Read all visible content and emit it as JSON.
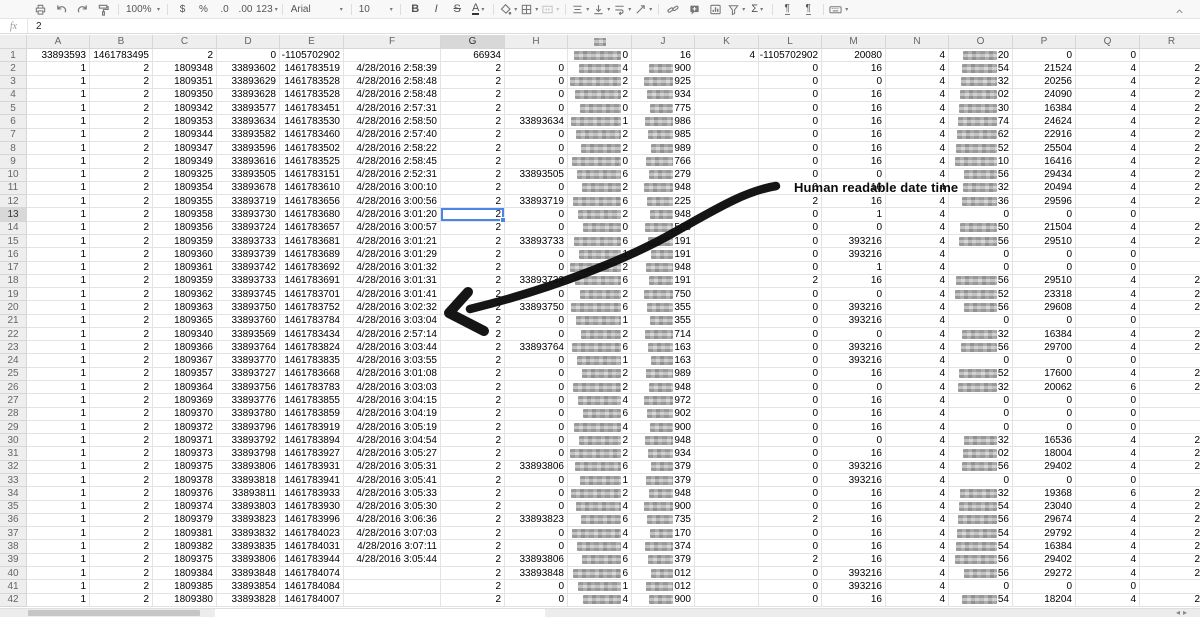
{
  "toolbar": {
    "zoom": "100%",
    "caret": "▾",
    "currency": "$",
    "percent": "%",
    "dec_dec": ".0",
    "inc_dec": ".00",
    "more_formats": "123",
    "font": "Arial",
    "size": "10",
    "bold": "B",
    "italic": "I",
    "strike": "S",
    "color": "A",
    "sum": "Σ",
    "pilcrow": "¶"
  },
  "formula_bar": {
    "fx_label": "fx",
    "value": "2"
  },
  "annotation": {
    "text": "Human readable date time"
  },
  "colors": {
    "selection": "#4a86e8",
    "arrow": "#0b0b0b",
    "redaction": "#b5b5b5"
  },
  "scrollbar": {
    "left_arrow": "◂",
    "right_arrow": "▸"
  },
  "sheet": {
    "selected_cell": {
      "col": "G",
      "row": 13,
      "value": "2"
    },
    "column_headers": [
      "A",
      "B",
      "C",
      "D",
      "E",
      "F",
      "G",
      "H",
      "~",
      "J",
      "K",
      "L",
      "M",
      "N",
      "O",
      "P",
      "Q",
      "R"
    ],
    "rows": [
      [
        "33893593",
        "1461783495",
        "2",
        "0",
        "-1105702902",
        "",
        "66934",
        "",
        "~0",
        "16",
        "4",
        "-1105702902",
        "20080",
        "4",
        "~20",
        "0",
        "0",
        ""
      ],
      [
        "1",
        "2",
        "1809348",
        "33893602",
        "1461783519",
        "4/28/2016 2:58:39",
        "2",
        "0",
        "~4",
        "~900",
        "",
        "0",
        "16",
        "4",
        "~54",
        "21524",
        "4",
        "2"
      ],
      [
        "1",
        "2",
        "1809351",
        "33893629",
        "1461783528",
        "4/28/2016 2:58:48",
        "2",
        "0",
        "~2",
        "~925",
        "",
        "0",
        "0",
        "4",
        "~32",
        "20256",
        "4",
        "2"
      ],
      [
        "1",
        "2",
        "1809350",
        "33893628",
        "1461783528",
        "4/28/2016 2:58:48",
        "2",
        "0",
        "~2",
        "~934",
        "",
        "0",
        "16",
        "4",
        "~02",
        "24090",
        "4",
        "2"
      ],
      [
        "1",
        "2",
        "1809342",
        "33893577",
        "1461783451",
        "4/28/2016 2:57:31",
        "2",
        "0",
        "~0",
        "~775",
        "",
        "0",
        "16",
        "4",
        "~30",
        "16384",
        "4",
        "2"
      ],
      [
        "1",
        "2",
        "1809353",
        "33893634",
        "1461783530",
        "4/28/2016 2:58:50",
        "2",
        "33893634",
        "~1",
        "~986",
        "",
        "0",
        "16",
        "4",
        "~74",
        "24624",
        "4",
        "2"
      ],
      [
        "1",
        "2",
        "1809344",
        "33893582",
        "1461783460",
        "4/28/2016 2:57:40",
        "2",
        "0",
        "~2",
        "~985",
        "",
        "0",
        "16",
        "4",
        "~62",
        "22916",
        "4",
        "2"
      ],
      [
        "1",
        "2",
        "1809347",
        "33893596",
        "1461783502",
        "4/28/2016 2:58:22",
        "2",
        "0",
        "~2",
        "~989",
        "",
        "0",
        "16",
        "4",
        "~52",
        "25504",
        "4",
        "2"
      ],
      [
        "1",
        "2",
        "1809349",
        "33893616",
        "1461783525",
        "4/28/2016 2:58:45",
        "2",
        "0",
        "~0",
        "~766",
        "",
        "0",
        "16",
        "4",
        "~10",
        "16416",
        "4",
        "2"
      ],
      [
        "1",
        "2",
        "1809325",
        "33893505",
        "1461783151",
        "4/28/2016 2:52:31",
        "2",
        "33893505",
        "~6",
        "~279",
        "",
        "0",
        "0",
        "4",
        "~56",
        "29434",
        "4",
        "2"
      ],
      [
        "1",
        "2",
        "1809354",
        "33893678",
        "1461783610",
        "4/28/2016 3:00:10",
        "2",
        "0",
        "~2",
        "~948",
        "",
        "0",
        "16",
        "4",
        "~32",
        "20494",
        "4",
        "2"
      ],
      [
        "1",
        "2",
        "1809355",
        "33893719",
        "1461783656",
        "4/28/2016 3:00:56",
        "2",
        "33893719",
        "~6",
        "~225",
        "",
        "2",
        "16",
        "4",
        "~36",
        "29596",
        "4",
        "2"
      ],
      [
        "1",
        "2",
        "1809358",
        "33893730",
        "1461783680",
        "4/28/2016 3:01:20",
        "2",
        "0",
        "~2",
        "~948",
        "",
        "0",
        "1",
        "4",
        "0",
        "0",
        "0",
        ""
      ],
      [
        "1",
        "2",
        "1809356",
        "33893724",
        "1461783657",
        "4/28/2016 3:00:57",
        "2",
        "0",
        "~0",
        "~508",
        "",
        "0",
        "0",
        "4",
        "~50",
        "21504",
        "4",
        "2"
      ],
      [
        "1",
        "2",
        "1809359",
        "33893733",
        "1461783681",
        "4/28/2016 3:01:21",
        "2",
        "33893733",
        "~6",
        "~191",
        "",
        "0",
        "393216",
        "4",
        "~56",
        "29510",
        "4",
        "2"
      ],
      [
        "1",
        "2",
        "1809360",
        "33893739",
        "1461783689",
        "4/28/2016 3:01:29",
        "2",
        "0",
        "~1",
        "~191",
        "",
        "0",
        "393216",
        "4",
        "0",
        "0",
        "0",
        ""
      ],
      [
        "1",
        "2",
        "1809361",
        "33893742",
        "1461783692",
        "4/28/2016 3:01:32",
        "2",
        "0",
        "~2",
        "~948",
        "",
        "0",
        "1",
        "4",
        "0",
        "0",
        "0",
        ""
      ],
      [
        "1",
        "2",
        "1809359",
        "33893733",
        "1461783691",
        "4/28/2016 3:01:31",
        "2",
        "33893733",
        "~6",
        "~191",
        "",
        "2",
        "16",
        "4",
        "~56",
        "29510",
        "4",
        "2"
      ],
      [
        "1",
        "2",
        "1809362",
        "33893745",
        "1461783701",
        "4/28/2016 3:01:41",
        "2",
        "0",
        "~2",
        "~750",
        "",
        "0",
        "0",
        "4",
        "~52",
        "23318",
        "4",
        "2"
      ],
      [
        "1",
        "2",
        "1809363",
        "33893750",
        "1461783752",
        "4/28/2016 3:02:32",
        "2",
        "33893750",
        "~6",
        "~355",
        "",
        "0",
        "393216",
        "4",
        "~56",
        "29608",
        "4",
        "2"
      ],
      [
        "1",
        "2",
        "1809365",
        "33893760",
        "1461783784",
        "4/28/2016 3:03:04",
        "2",
        "0",
        "~1",
        "~355",
        "",
        "0",
        "393216",
        "4",
        "0",
        "0",
        "0",
        ""
      ],
      [
        "1",
        "2",
        "1809340",
        "33893569",
        "1461783434",
        "4/28/2016 2:57:14",
        "2",
        "0",
        "~2",
        "~714",
        "",
        "0",
        "0",
        "4",
        "~32",
        "16384",
        "4",
        "2"
      ],
      [
        "1",
        "2",
        "1809366",
        "33893764",
        "1461783824",
        "4/28/2016 3:03:44",
        "2",
        "33893764",
        "~6",
        "~163",
        "",
        "0",
        "393216",
        "4",
        "~56",
        "29700",
        "4",
        "2"
      ],
      [
        "1",
        "2",
        "1809367",
        "33893770",
        "1461783835",
        "4/28/2016 3:03:55",
        "2",
        "0",
        "~1",
        "~163",
        "",
        "0",
        "393216",
        "4",
        "0",
        "0",
        "0",
        ""
      ],
      [
        "1",
        "2",
        "1809357",
        "33893727",
        "1461783668",
        "4/28/2016 3:01:08",
        "2",
        "0",
        "~2",
        "~989",
        "",
        "0",
        "16",
        "4",
        "~52",
        "17600",
        "4",
        "2"
      ],
      [
        "1",
        "2",
        "1809364",
        "33893756",
        "1461783783",
        "4/28/2016 3:03:03",
        "2",
        "0",
        "~2",
        "~948",
        "",
        "0",
        "0",
        "4",
        "~32",
        "20062",
        "6",
        "2"
      ],
      [
        "1",
        "2",
        "1809369",
        "33893776",
        "1461783855",
        "4/28/2016 3:04:15",
        "2",
        "0",
        "~4",
        "~972",
        "",
        "0",
        "16",
        "4",
        "0",
        "0",
        "0",
        ""
      ],
      [
        "1",
        "2",
        "1809370",
        "33893780",
        "1461783859",
        "4/28/2016 3:04:19",
        "2",
        "0",
        "~6",
        "~902",
        "",
        "0",
        "16",
        "4",
        "0",
        "0",
        "0",
        ""
      ],
      [
        "1",
        "2",
        "1809372",
        "33893796",
        "1461783919",
        "4/28/2016 3:05:19",
        "2",
        "0",
        "~4",
        "~900",
        "",
        "0",
        "16",
        "4",
        "0",
        "0",
        "0",
        ""
      ],
      [
        "1",
        "2",
        "1809371",
        "33893792",
        "1461783894",
        "4/28/2016 3:04:54",
        "2",
        "0",
        "~2",
        "~948",
        "",
        "0",
        "0",
        "4",
        "~32",
        "16536",
        "4",
        "2"
      ],
      [
        "1",
        "2",
        "1809373",
        "33893798",
        "1461783927",
        "4/28/2016 3:05:27",
        "2",
        "0",
        "~2",
        "~934",
        "",
        "0",
        "16",
        "4",
        "~02",
        "18004",
        "4",
        "2"
      ],
      [
        "1",
        "2",
        "1809375",
        "33893806",
        "1461783931",
        "4/28/2016 3:05:31",
        "2",
        "33893806",
        "~6",
        "~379",
        "",
        "0",
        "393216",
        "4",
        "~56",
        "29402",
        "4",
        "2"
      ],
      [
        "1",
        "2",
        "1809378",
        "33893818",
        "1461783941",
        "4/28/2016 3:05:41",
        "2",
        "0",
        "~1",
        "~379",
        "",
        "0",
        "393216",
        "4",
        "0",
        "0",
        "0",
        ""
      ],
      [
        "1",
        "2",
        "1809376",
        "33893811",
        "1461783933",
        "4/28/2016 3:05:33",
        "2",
        "0",
        "~2",
        "~948",
        "",
        "0",
        "16",
        "4",
        "~32",
        "19368",
        "6",
        "2"
      ],
      [
        "1",
        "2",
        "1809374",
        "33893803",
        "1461783930",
        "4/28/2016 3:05:30",
        "2",
        "0",
        "~4",
        "~900",
        "",
        "0",
        "16",
        "4",
        "~54",
        "23040",
        "4",
        "2"
      ],
      [
        "1",
        "2",
        "1809379",
        "33893823",
        "1461783996",
        "4/28/2016 3:06:36",
        "2",
        "33893823",
        "~6",
        "~735",
        "",
        "2",
        "16",
        "4",
        "~56",
        "29674",
        "4",
        "2"
      ],
      [
        "1",
        "2",
        "1809381",
        "33893832",
        "1461784023",
        "4/28/2016 3:07:03",
        "2",
        "0",
        "~4",
        "~170",
        "",
        "0",
        "16",
        "4",
        "~54",
        "29792",
        "4",
        "2"
      ],
      [
        "1",
        "2",
        "1809382",
        "33893835",
        "1461784031",
        "4/28/2016 3:07:11",
        "2",
        "0",
        "~4",
        "~374",
        "",
        "0",
        "16",
        "4",
        "~54",
        "16384",
        "4",
        "2"
      ],
      [
        "1",
        "2",
        "1809375",
        "33893806",
        "1461783944",
        "4/28/2016 3:05:44",
        "2",
        "33893806",
        "~6",
        "~379",
        "",
        "2",
        "16",
        "4",
        "~56",
        "29402",
        "4",
        "2"
      ],
      [
        "1",
        "2",
        "1809384",
        "33893848",
        "1461784074",
        "",
        "2",
        "33893848",
        "~6",
        "~012",
        "",
        "0",
        "393216",
        "4",
        "~56",
        "29272",
        "4",
        "2"
      ],
      [
        "1",
        "2",
        "1809385",
        "33893854",
        "1461784084",
        "",
        "2",
        "0",
        "~1",
        "~012",
        "",
        "0",
        "393216",
        "4",
        "0",
        "0",
        "0",
        ""
      ],
      [
        "1",
        "2",
        "1809380",
        "33893828",
        "1461784007",
        "",
        "2",
        "0",
        "~4",
        "~900",
        "",
        "0",
        "16",
        "4",
        "~54",
        "18204",
        "4",
        "2"
      ]
    ]
  }
}
